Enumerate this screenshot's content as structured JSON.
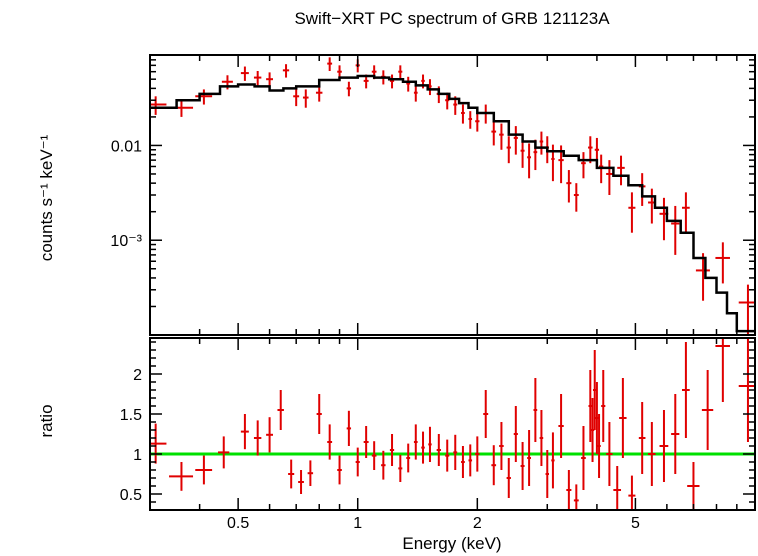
{
  "chart_data": {
    "type": "scatter",
    "title": "Swift−XRT PC spectrum of GRB 121123A",
    "xlabel": "Energy (keV)",
    "x_scale": "log",
    "xlim": [
      0.3,
      10
    ],
    "x_ticks": [
      {
        "v": 0.5,
        "label": "0.5"
      },
      {
        "v": 1,
        "label": "1"
      },
      {
        "v": 2,
        "label": "2"
      },
      {
        "v": 5,
        "label": "5"
      }
    ],
    "colors": {
      "data": "#e00000",
      "model": "#000000",
      "unity": "#00e000"
    },
    "top_panel": {
      "ylabel": "counts s⁻¹ keV⁻¹",
      "y_scale": "log",
      "ylim": [
        0.0001,
        0.09
      ],
      "y_ticks": [
        {
          "v": 0.01,
          "label": "0.01"
        },
        {
          "v": 0.001,
          "label": "10⁻³"
        }
      ],
      "model_step": [
        [
          0.3,
          0.025
        ],
        [
          0.35,
          0.03
        ],
        [
          0.4,
          0.035
        ],
        [
          0.45,
          0.042
        ],
        [
          0.5,
          0.044
        ],
        [
          0.55,
          0.042
        ],
        [
          0.6,
          0.038
        ],
        [
          0.65,
          0.04
        ],
        [
          0.7,
          0.042
        ],
        [
          0.8,
          0.049
        ],
        [
          0.9,
          0.052
        ],
        [
          1.0,
          0.054
        ],
        [
          1.1,
          0.052
        ],
        [
          1.2,
          0.05
        ],
        [
          1.3,
          0.047
        ],
        [
          1.4,
          0.043
        ],
        [
          1.5,
          0.039
        ],
        [
          1.6,
          0.035
        ],
        [
          1.7,
          0.031
        ],
        [
          1.8,
          0.028
        ],
        [
          1.9,
          0.025
        ],
        [
          2.0,
          0.022
        ],
        [
          2.2,
          0.018
        ],
        [
          2.4,
          0.013
        ],
        [
          2.6,
          0.011
        ],
        [
          2.8,
          0.0095
        ],
        [
          3.0,
          0.0087
        ],
        [
          3.3,
          0.0078
        ],
        [
          3.6,
          0.007
        ],
        [
          4.0,
          0.0058
        ],
        [
          4.4,
          0.0048
        ],
        [
          4.8,
          0.0038
        ],
        [
          5.2,
          0.0029
        ],
        [
          5.6,
          0.0022
        ],
        [
          6.0,
          0.0016
        ],
        [
          6.5,
          0.0012
        ],
        [
          7.0,
          0.00065
        ],
        [
          7.5,
          0.0004
        ],
        [
          8.0,
          0.00028
        ],
        [
          8.5,
          0.00017
        ],
        [
          9.0,
          0.00011
        ],
        [
          10.0,
          0.00011
        ]
      ],
      "points": [
        {
          "x": 0.31,
          "xerr": 0.02,
          "y": 0.027,
          "yerr": 0.006
        },
        {
          "x": 0.36,
          "xerr": 0.025,
          "y": 0.025,
          "yerr": 0.005
        },
        {
          "x": 0.41,
          "xerr": 0.02,
          "y": 0.033,
          "yerr": 0.006
        },
        {
          "x": 0.47,
          "xerr": 0.015,
          "y": 0.047,
          "yerr": 0.008
        },
        {
          "x": 0.52,
          "xerr": 0.012,
          "y": 0.058,
          "yerr": 0.01
        },
        {
          "x": 0.56,
          "xerr": 0.012,
          "y": 0.052,
          "yerr": 0.009
        },
        {
          "x": 0.6,
          "xerr": 0.012,
          "y": 0.05,
          "yerr": 0.009
        },
        {
          "x": 0.66,
          "xerr": 0.012,
          "y": 0.062,
          "yerr": 0.01
        },
        {
          "x": 0.7,
          "xerr": 0.012,
          "y": 0.033,
          "yerr": 0.007
        },
        {
          "x": 0.74,
          "xerr": 0.012,
          "y": 0.032,
          "yerr": 0.007
        },
        {
          "x": 0.8,
          "xerr": 0.015,
          "y": 0.036,
          "yerr": 0.007
        },
        {
          "x": 0.85,
          "xerr": 0.012,
          "y": 0.073,
          "yerr": 0.012
        },
        {
          "x": 0.9,
          "xerr": 0.012,
          "y": 0.06,
          "yerr": 0.01
        },
        {
          "x": 0.95,
          "xerr": 0.012,
          "y": 0.04,
          "yerr": 0.007
        },
        {
          "x": 1.0,
          "xerr": 0.012,
          "y": 0.07,
          "yerr": 0.011
        },
        {
          "x": 1.05,
          "xerr": 0.015,
          "y": 0.048,
          "yerr": 0.008
        },
        {
          "x": 1.1,
          "xerr": 0.015,
          "y": 0.06,
          "yerr": 0.01
        },
        {
          "x": 1.16,
          "xerr": 0.015,
          "y": 0.053,
          "yerr": 0.009
        },
        {
          "x": 1.22,
          "xerr": 0.015,
          "y": 0.048,
          "yerr": 0.008
        },
        {
          "x": 1.28,
          "xerr": 0.015,
          "y": 0.06,
          "yerr": 0.01
        },
        {
          "x": 1.34,
          "xerr": 0.015,
          "y": 0.045,
          "yerr": 0.008
        },
        {
          "x": 1.4,
          "xerr": 0.015,
          "y": 0.036,
          "yerr": 0.007
        },
        {
          "x": 1.46,
          "xerr": 0.015,
          "y": 0.048,
          "yerr": 0.008
        },
        {
          "x": 1.52,
          "xerr": 0.015,
          "y": 0.042,
          "yerr": 0.008
        },
        {
          "x": 1.6,
          "xerr": 0.02,
          "y": 0.035,
          "yerr": 0.007
        },
        {
          "x": 1.68,
          "xerr": 0.02,
          "y": 0.03,
          "yerr": 0.006
        },
        {
          "x": 1.76,
          "xerr": 0.02,
          "y": 0.027,
          "yerr": 0.006
        },
        {
          "x": 1.84,
          "xerr": 0.02,
          "y": 0.022,
          "yerr": 0.005
        },
        {
          "x": 1.92,
          "xerr": 0.02,
          "y": 0.019,
          "yerr": 0.004
        },
        {
          "x": 2.0,
          "xerr": 0.025,
          "y": 0.018,
          "yerr": 0.004
        },
        {
          "x": 2.1,
          "xerr": 0.03,
          "y": 0.022,
          "yerr": 0.005
        },
        {
          "x": 2.2,
          "xerr": 0.03,
          "y": 0.014,
          "yerr": 0.004
        },
        {
          "x": 2.3,
          "xerr": 0.03,
          "y": 0.013,
          "yerr": 0.004
        },
        {
          "x": 2.4,
          "xerr": 0.03,
          "y": 0.0095,
          "yerr": 0.003
        },
        {
          "x": 2.5,
          "xerr": 0.03,
          "y": 0.012,
          "yerr": 0.004
        },
        {
          "x": 2.6,
          "xerr": 0.03,
          "y": 0.0088,
          "yerr": 0.003
        },
        {
          "x": 2.7,
          "xerr": 0.03,
          "y": 0.0075,
          "yerr": 0.003
        },
        {
          "x": 2.8,
          "xerr": 0.03,
          "y": 0.0085,
          "yerr": 0.003
        },
        {
          "x": 2.9,
          "xerr": 0.03,
          "y": 0.011,
          "yerr": 0.003
        },
        {
          "x": 3.0,
          "xerr": 0.03,
          "y": 0.0095,
          "yerr": 0.003
        },
        {
          "x": 3.1,
          "xerr": 0.03,
          "y": 0.0072,
          "yerr": 0.003
        },
        {
          "x": 3.25,
          "xerr": 0.05,
          "y": 0.007,
          "yerr": 0.003
        },
        {
          "x": 3.4,
          "xerr": 0.05,
          "y": 0.004,
          "yerr": 0.0015
        },
        {
          "x": 3.55,
          "xerr": 0.05,
          "y": 0.003,
          "yerr": 0.001
        },
        {
          "x": 3.7,
          "xerr": 0.05,
          "y": 0.0065,
          "yerr": 0.002
        },
        {
          "x": 3.85,
          "xerr": 0.05,
          "y": 0.0095,
          "yerr": 0.003
        },
        {
          "x": 4.0,
          "xerr": 0.05,
          "y": 0.009,
          "yerr": 0.003
        },
        {
          "x": 4.1,
          "xerr": 0.05,
          "y": 0.006,
          "yerr": 0.002
        },
        {
          "x": 4.3,
          "xerr": 0.08,
          "y": 0.005,
          "yerr": 0.002
        },
        {
          "x": 4.6,
          "xerr": 0.1,
          "y": 0.0058,
          "yerr": 0.002
        },
        {
          "x": 4.9,
          "xerr": 0.1,
          "y": 0.0022,
          "yerr": 0.001
        },
        {
          "x": 5.2,
          "xerr": 0.1,
          "y": 0.0037,
          "yerr": 0.0014
        },
        {
          "x": 5.5,
          "xerr": 0.12,
          "y": 0.0025,
          "yerr": 0.001
        },
        {
          "x": 5.9,
          "xerr": 0.15,
          "y": 0.0019,
          "yerr": 0.0009
        },
        {
          "x": 6.3,
          "xerr": 0.15,
          "y": 0.0015,
          "yerr": 0.0008
        },
        {
          "x": 6.7,
          "xerr": 0.15,
          "y": 0.0022,
          "yerr": 0.001
        },
        {
          "x": 7.4,
          "xerr": 0.3,
          "y": 0.00048,
          "yerr": 0.00025
        },
        {
          "x": 8.3,
          "xerr": 0.35,
          "y": 0.00065,
          "yerr": 0.0003
        },
        {
          "x": 9.6,
          "xerr": 0.5,
          "y": 0.00022,
          "yerr": 0.00012
        }
      ]
    },
    "bottom_panel": {
      "ylabel": "ratio",
      "ylim": [
        0.3,
        2.45
      ],
      "y_ticks": [
        {
          "v": 0.5,
          "label": "0.5"
        },
        {
          "v": 1,
          "label": "1"
        },
        {
          "v": 1.5,
          "label": "1.5"
        },
        {
          "v": 2,
          "label": "2"
        }
      ],
      "unity_line": 1,
      "points": [
        {
          "x": 0.31,
          "xerr": 0.02,
          "y": 1.13,
          "yerr": 0.25
        },
        {
          "x": 0.36,
          "xerr": 0.025,
          "y": 0.72,
          "yerr": 0.18
        },
        {
          "x": 0.41,
          "xerr": 0.02,
          "y": 0.8,
          "yerr": 0.18
        },
        {
          "x": 0.46,
          "xerr": 0.015,
          "y": 1.02,
          "yerr": 0.2
        },
        {
          "x": 0.52,
          "xerr": 0.012,
          "y": 1.28,
          "yerr": 0.22
        },
        {
          "x": 0.56,
          "xerr": 0.012,
          "y": 1.2,
          "yerr": 0.22
        },
        {
          "x": 0.6,
          "xerr": 0.012,
          "y": 1.24,
          "yerr": 0.22
        },
        {
          "x": 0.64,
          "xerr": 0.012,
          "y": 1.55,
          "yerr": 0.25
        },
        {
          "x": 0.68,
          "xerr": 0.012,
          "y": 0.75,
          "yerr": 0.18
        },
        {
          "x": 0.72,
          "xerr": 0.012,
          "y": 0.65,
          "yerr": 0.15
        },
        {
          "x": 0.76,
          "xerr": 0.012,
          "y": 0.76,
          "yerr": 0.16
        },
        {
          "x": 0.8,
          "xerr": 0.012,
          "y": 1.5,
          "yerr": 0.25
        },
        {
          "x": 0.85,
          "xerr": 0.012,
          "y": 1.15,
          "yerr": 0.22
        },
        {
          "x": 0.9,
          "xerr": 0.012,
          "y": 0.8,
          "yerr": 0.18
        },
        {
          "x": 0.95,
          "xerr": 0.012,
          "y": 1.32,
          "yerr": 0.22
        },
        {
          "x": 1.0,
          "xerr": 0.012,
          "y": 0.9,
          "yerr": 0.18
        },
        {
          "x": 1.05,
          "xerr": 0.015,
          "y": 1.15,
          "yerr": 0.2
        },
        {
          "x": 1.1,
          "xerr": 0.015,
          "y": 0.98,
          "yerr": 0.18
        },
        {
          "x": 1.16,
          "xerr": 0.015,
          "y": 0.86,
          "yerr": 0.18
        },
        {
          "x": 1.22,
          "xerr": 0.015,
          "y": 1.05,
          "yerr": 0.2
        },
        {
          "x": 1.28,
          "xerr": 0.015,
          "y": 0.82,
          "yerr": 0.17
        },
        {
          "x": 1.34,
          "xerr": 0.015,
          "y": 0.95,
          "yerr": 0.18
        },
        {
          "x": 1.4,
          "xerr": 0.015,
          "y": 1.15,
          "yerr": 0.22
        },
        {
          "x": 1.46,
          "xerr": 0.015,
          "y": 1.08,
          "yerr": 0.2
        },
        {
          "x": 1.52,
          "xerr": 0.015,
          "y": 1.12,
          "yerr": 0.22
        },
        {
          "x": 1.6,
          "xerr": 0.02,
          "y": 1.05,
          "yerr": 0.2
        },
        {
          "x": 1.68,
          "xerr": 0.02,
          "y": 0.98,
          "yerr": 0.2
        },
        {
          "x": 1.76,
          "xerr": 0.02,
          "y": 1.02,
          "yerr": 0.22
        },
        {
          "x": 1.84,
          "xerr": 0.02,
          "y": 0.9,
          "yerr": 0.2
        },
        {
          "x": 1.92,
          "xerr": 0.02,
          "y": 0.92,
          "yerr": 0.2
        },
        {
          "x": 2.0,
          "xerr": 0.025,
          "y": 1.0,
          "yerr": 0.22
        },
        {
          "x": 2.1,
          "xerr": 0.03,
          "y": 1.5,
          "yerr": 0.3
        },
        {
          "x": 2.2,
          "xerr": 0.03,
          "y": 0.86,
          "yerr": 0.25
        },
        {
          "x": 2.3,
          "xerr": 0.03,
          "y": 1.1,
          "yerr": 0.3
        },
        {
          "x": 2.4,
          "xerr": 0.03,
          "y": 0.7,
          "yerr": 0.25
        },
        {
          "x": 2.5,
          "xerr": 0.03,
          "y": 1.25,
          "yerr": 0.35
        },
        {
          "x": 2.6,
          "xerr": 0.03,
          "y": 0.85,
          "yerr": 0.3
        },
        {
          "x": 2.7,
          "xerr": 0.03,
          "y": 0.95,
          "yerr": 0.35
        },
        {
          "x": 2.8,
          "xerr": 0.03,
          "y": 1.55,
          "yerr": 0.4
        },
        {
          "x": 2.9,
          "xerr": 0.03,
          "y": 1.2,
          "yerr": 0.35
        },
        {
          "x": 3.0,
          "xerr": 0.03,
          "y": 0.75,
          "yerr": 0.3
        },
        {
          "x": 3.1,
          "xerr": 0.03,
          "y": 0.92,
          "yerr": 0.35
        },
        {
          "x": 3.25,
          "xerr": 0.05,
          "y": 1.35,
          "yerr": 0.4
        },
        {
          "x": 3.4,
          "xerr": 0.05,
          "y": 0.55,
          "yerr": 0.25
        },
        {
          "x": 3.55,
          "xerr": 0.05,
          "y": 0.42,
          "yerr": 0.2
        },
        {
          "x": 3.7,
          "xerr": 0.05,
          "y": 0.95,
          "yerr": 0.4
        },
        {
          "x": 3.85,
          "xerr": 0.04,
          "y": 1.6,
          "yerr": 0.45
        },
        {
          "x": 3.9,
          "xerr": 0.04,
          "y": 1.3,
          "yerr": 0.4
        },
        {
          "x": 3.95,
          "xerr": 0.04,
          "y": 1.8,
          "yerr": 0.5
        },
        {
          "x": 4.0,
          "xerr": 0.04,
          "y": 1.45,
          "yerr": 0.45
        },
        {
          "x": 4.05,
          "xerr": 0.04,
          "y": 1.1,
          "yerr": 0.4
        },
        {
          "x": 4.15,
          "xerr": 0.05,
          "y": 1.6,
          "yerr": 0.45
        },
        {
          "x": 4.3,
          "xerr": 0.08,
          "y": 1.0,
          "yerr": 0.4
        },
        {
          "x": 4.5,
          "xerr": 0.1,
          "y": 0.55,
          "yerr": 0.3
        },
        {
          "x": 4.65,
          "xerr": 0.1,
          "y": 1.45,
          "yerr": 0.5
        },
        {
          "x": 4.9,
          "xerr": 0.1,
          "y": 0.48,
          "yerr": 0.25
        },
        {
          "x": 5.2,
          "xerr": 0.1,
          "y": 1.2,
          "yerr": 0.45
        },
        {
          "x": 5.5,
          "xerr": 0.12,
          "y": 1.0,
          "yerr": 0.4
        },
        {
          "x": 5.9,
          "xerr": 0.15,
          "y": 1.1,
          "yerr": 0.45
        },
        {
          "x": 6.3,
          "xerr": 0.15,
          "y": 1.25,
          "yerr": 0.5
        },
        {
          "x": 6.7,
          "xerr": 0.15,
          "y": 1.8,
          "yerr": 0.6
        },
        {
          "x": 7.0,
          "xerr": 0.25,
          "y": 0.6,
          "yerr": 0.3
        },
        {
          "x": 7.6,
          "xerr": 0.25,
          "y": 1.55,
          "yerr": 0.5
        },
        {
          "x": 8.3,
          "xerr": 0.35,
          "y": 2.35,
          "yerr": 0.7
        },
        {
          "x": 9.6,
          "xerr": 0.5,
          "y": 1.85,
          "yerr": 0.7
        }
      ]
    }
  }
}
